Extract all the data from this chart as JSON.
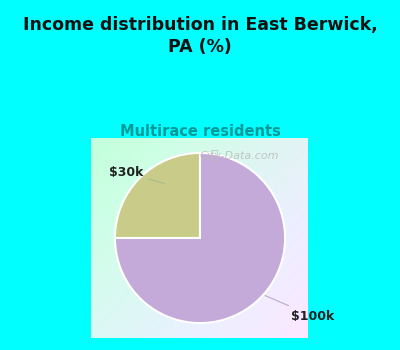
{
  "title": "Income distribution in East Berwick,\nPA (%)",
  "subtitle": "Multirace residents",
  "title_color": "#111111",
  "subtitle_color": "#009999",
  "slices": [
    0.25,
    0.75
  ],
  "slice_colors": [
    "#c8cc88",
    "#c4aad8"
  ],
  "slice_labels": [
    "$30k",
    "$100k"
  ],
  "bg_outer_color": "#00ffff",
  "watermark": "City-Data.com",
  "startangle": 90,
  "figsize": [
    4.0,
    3.5
  ],
  "dpi": 100
}
